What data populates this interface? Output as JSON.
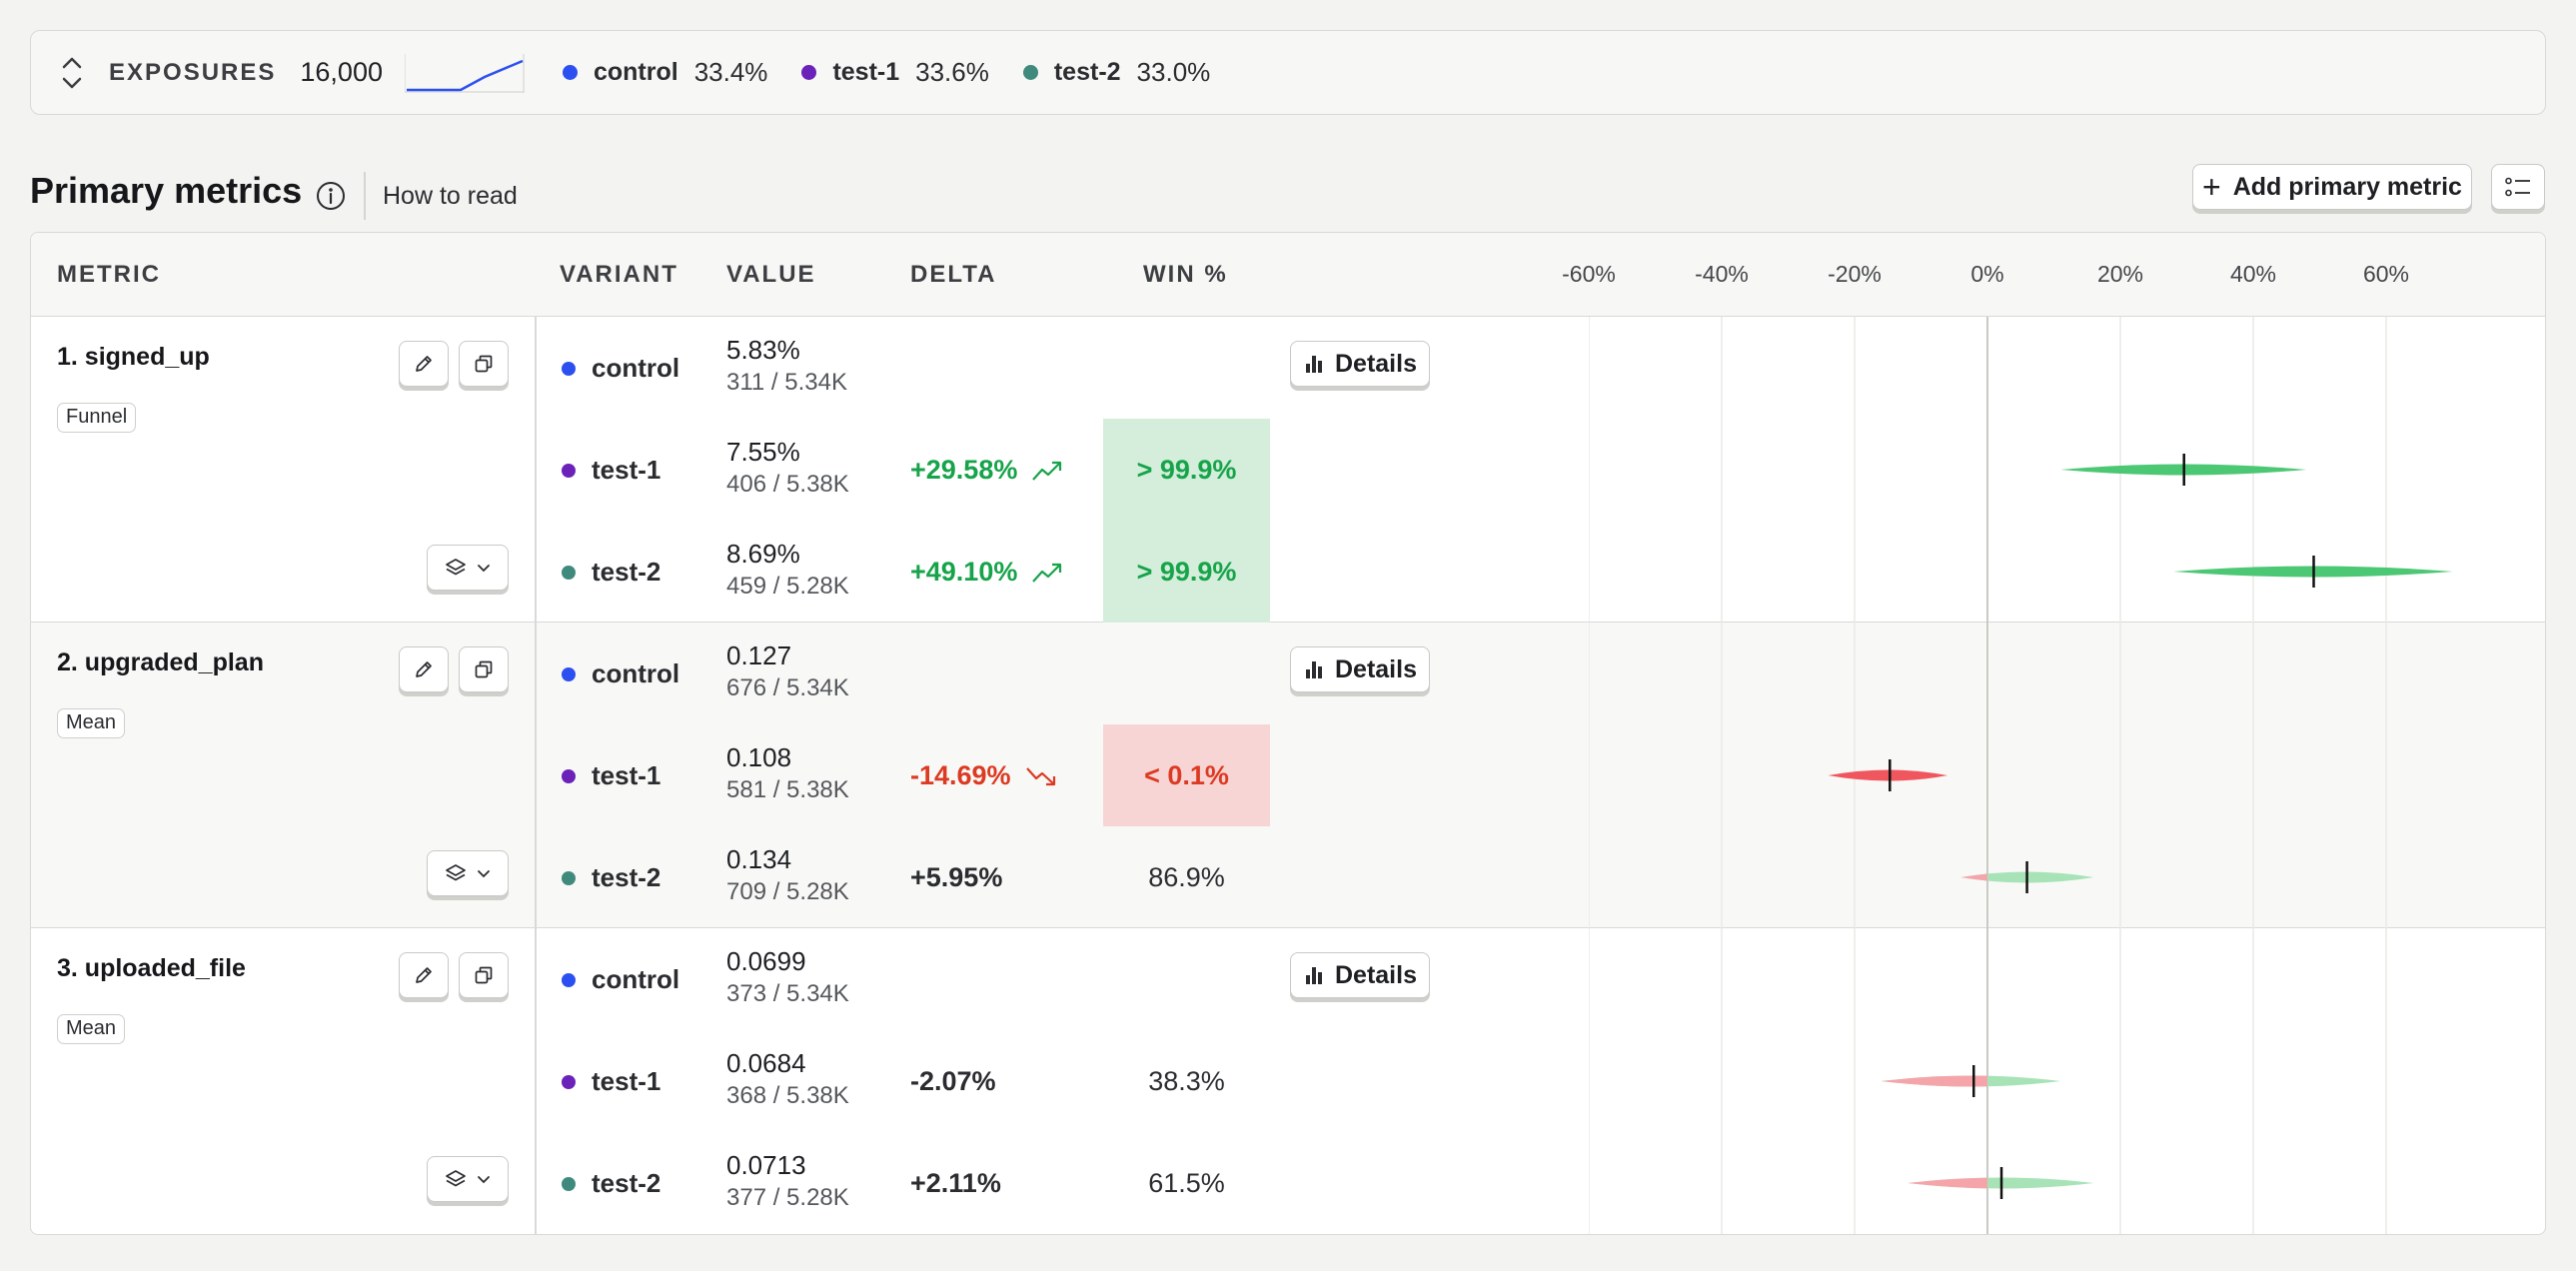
{
  "exposures": {
    "label": "EXPOSURES",
    "count": "16,000",
    "variants": [
      {
        "name": "control",
        "pct": "33.4%",
        "color": "#2c4ff0"
      },
      {
        "name": "test-1",
        "pct": "33.6%",
        "color": "#6a22b8"
      },
      {
        "name": "test-2",
        "pct": "33.0%",
        "color": "#3f8a7c"
      }
    ]
  },
  "section": {
    "title": "Primary metrics",
    "how_to_read": "How to read",
    "add_metric_label": "Add primary metric"
  },
  "table": {
    "headers": {
      "metric": "METRIC",
      "variant": "VARIANT",
      "value": "VALUE",
      "delta": "DELTA",
      "win": "WIN %"
    },
    "axis_ticks": [
      "-60%",
      "-40%",
      "-20%",
      "0%",
      "20%",
      "40%",
      "60%"
    ],
    "details_label": "Details"
  },
  "metrics": [
    {
      "name": "1. signed_up",
      "type": "Funnel",
      "rows": [
        {
          "variant": "control",
          "value": "5.83%",
          "sub": "311 / 5.34K",
          "delta": "",
          "win": ""
        },
        {
          "variant": "test-1",
          "value": "7.55%",
          "sub": "406 / 5.38K",
          "delta": "+29.58%",
          "win": "> 99.9%"
        },
        {
          "variant": "test-2",
          "value": "8.69%",
          "sub": "459 / 5.28K",
          "delta": "+49.10%",
          "win": "> 99.9%"
        }
      ]
    },
    {
      "name": "2. upgraded_plan",
      "type": "Mean",
      "rows": [
        {
          "variant": "control",
          "value": "0.127",
          "sub": "676 / 5.34K",
          "delta": "",
          "win": ""
        },
        {
          "variant": "test-1",
          "value": "0.108",
          "sub": "581 / 5.38K",
          "delta": "-14.69%",
          "win": "< 0.1%"
        },
        {
          "variant": "test-2",
          "value": "0.134",
          "sub": "709 / 5.28K",
          "delta": "+5.95%",
          "win": "86.9%"
        }
      ]
    },
    {
      "name": "3. uploaded_file",
      "type": "Mean",
      "rows": [
        {
          "variant": "control",
          "value": "0.0699",
          "sub": "373 / 5.34K",
          "delta": "",
          "win": ""
        },
        {
          "variant": "test-1",
          "value": "0.0684",
          "sub": "368 / 5.38K",
          "delta": "-2.07%",
          "win": "38.3%"
        },
        {
          "variant": "test-2",
          "value": "0.0713",
          "sub": "377 / 5.28K",
          "delta": "+2.11%",
          "win": "61.5%"
        }
      ]
    }
  ],
  "intervals": {
    "axis_range_pct": [
      -60,
      60
    ],
    "colors": {
      "positive": "#4cc774",
      "negative": "#f0565e",
      "positive_light": "#a8e3b8",
      "negative_light": "#f5a5aa"
    },
    "metrics": [
      [
        null,
        {
          "low": 11,
          "high": 48,
          "mean": 29.58
        },
        {
          "low": 28,
          "high": 70,
          "mean": 49.1
        }
      ],
      [
        null,
        {
          "low": -24,
          "high": -6,
          "mean": -14.69
        },
        {
          "low": -4,
          "high": 16,
          "mean": 5.95
        }
      ],
      [
        null,
        {
          "low": -16,
          "high": 11,
          "mean": -2.07
        },
        {
          "low": -12,
          "high": 16,
          "mean": 2.11
        }
      ]
    ]
  }
}
